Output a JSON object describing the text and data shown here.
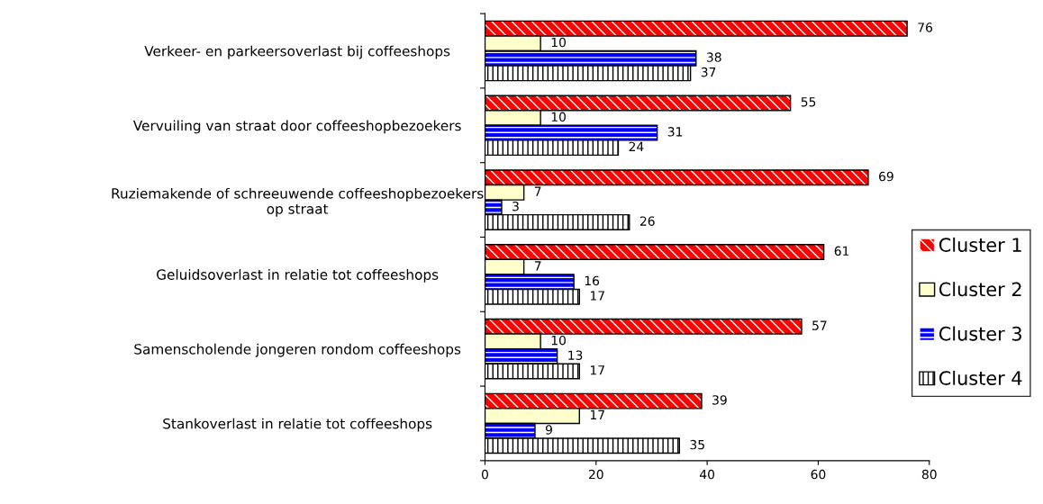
{
  "chart_data": {
    "type": "bar",
    "orientation": "horizontal",
    "categories": [
      "Verkeer- en parkeersoverlast bij coffeeshops",
      "Vervuiling van straat door coffeeshopbezoekers",
      "Ruziemakende of schreeuwende coffeeshopbezoekers\nop straat",
      "Geluidsoverlast in relatie tot coffeeshops",
      "Samenscholende jongeren rondom coffeeshops",
      "Stankoverlast in relatie tot coffeeshops"
    ],
    "series": [
      {
        "name": "Cluster 1",
        "color": "#ff0000",
        "values": [
          76,
          55,
          69,
          61,
          57,
          39
        ]
      },
      {
        "name": "Cluster 2",
        "color": "#ffffcc",
        "values": [
          10,
          10,
          7,
          7,
          10,
          17
        ]
      },
      {
        "name": "Cluster 3",
        "color": "#0000ff",
        "values": [
          38,
          31,
          3,
          16,
          13,
          9
        ]
      },
      {
        "name": "Cluster 4",
        "color": "#000000",
        "values": [
          37,
          24,
          26,
          17,
          17,
          35
        ]
      }
    ],
    "xlim": [
      0,
      80
    ],
    "xticks": [
      0,
      20,
      40,
      60,
      80
    ],
    "grid": false,
    "legend": "right",
    "data_labels": true
  }
}
